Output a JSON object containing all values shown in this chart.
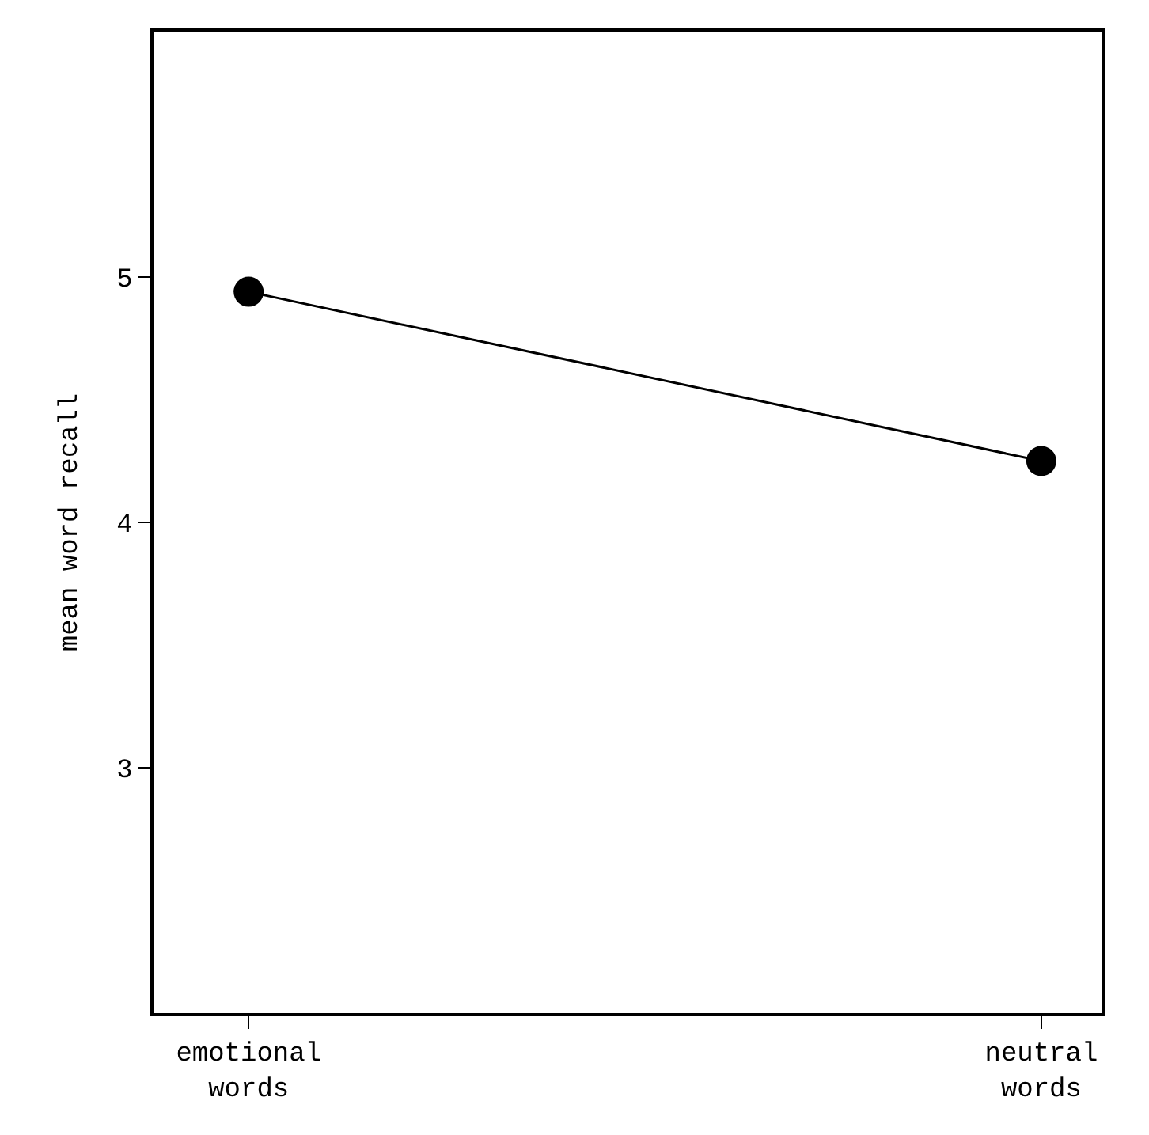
{
  "chart_data": {
    "type": "line",
    "ylabel": "mean word recall",
    "categories": [
      "emotional\nwords",
      "neutral\nwords"
    ],
    "series": [
      {
        "color": "#000000",
        "values": [
          4.94,
          4.25
        ]
      }
    ],
    "ylim": [
      2,
      6
    ],
    "yticks": [
      3,
      4,
      5
    ],
    "grid": false,
    "marker": "circle",
    "line_style": "solid"
  }
}
